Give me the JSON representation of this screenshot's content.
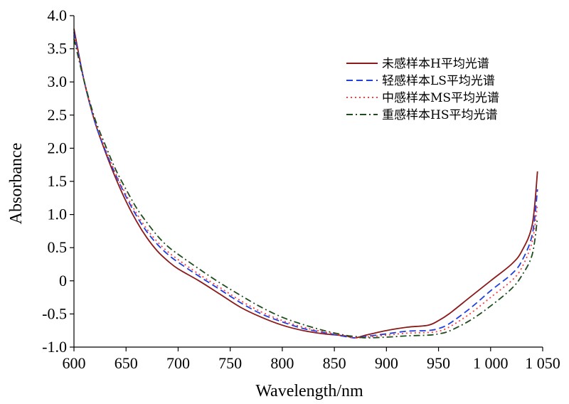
{
  "chart_data": {
    "type": "line",
    "title": "",
    "xlabel": "Wavelength/nm",
    "ylabel": "Absorbance",
    "xlim": [
      600,
      1050
    ],
    "ylim": [
      -1.0,
      4.0
    ],
    "x_ticks": [
      600,
      650,
      700,
      750,
      800,
      850,
      900,
      950,
      1000,
      1050
    ],
    "x_tick_labels": [
      "600",
      "650",
      "700",
      "750",
      "800",
      "850",
      "900",
      "950",
      "1 000",
      "1 050"
    ],
    "y_ticks": [
      -1.0,
      -0.5,
      0,
      0.5,
      1.0,
      1.5,
      2.0,
      2.5,
      3.0,
      3.5,
      4.0
    ],
    "y_tick_labels": [
      "-1.0",
      "-0.5",
      "0",
      "0.5",
      "1.0",
      "1.5",
      "2.0",
      "2.5",
      "3.0",
      "3.5",
      "4.0"
    ],
    "grid": false,
    "legend_position": "top-right",
    "series": [
      {
        "name": "未感样本H平均光谱",
        "color": "#8b1a1a",
        "dash": "solid",
        "x": [
          600,
          610,
          620,
          630,
          640,
          650,
          660,
          670,
          680,
          690,
          700,
          720,
          740,
          760,
          780,
          800,
          820,
          840,
          860,
          870,
          880,
          900,
          920,
          940,
          950,
          960,
          980,
          1000,
          1020,
          1030,
          1040,
          1045
        ],
        "y": [
          3.8,
          3.0,
          2.4,
          1.95,
          1.55,
          1.2,
          0.9,
          0.65,
          0.45,
          0.3,
          0.18,
          0.0,
          -0.2,
          -0.4,
          -0.55,
          -0.67,
          -0.75,
          -0.8,
          -0.83,
          -0.86,
          -0.82,
          -0.75,
          -0.7,
          -0.67,
          -0.6,
          -0.5,
          -0.25,
          0.0,
          0.25,
          0.45,
          0.85,
          1.65
        ]
      },
      {
        "name": "轻感样本LS平均光谱",
        "color": "#1f3fe0",
        "dash": "dashed",
        "x": [
          600,
          610,
          620,
          630,
          640,
          650,
          660,
          670,
          680,
          690,
          700,
          720,
          740,
          760,
          780,
          800,
          820,
          840,
          860,
          870,
          880,
          900,
          920,
          940,
          950,
          960,
          980,
          1000,
          1020,
          1030,
          1040,
          1045
        ],
        "y": [
          3.75,
          3.0,
          2.4,
          1.97,
          1.6,
          1.27,
          0.98,
          0.74,
          0.55,
          0.4,
          0.28,
          0.07,
          -0.13,
          -0.33,
          -0.5,
          -0.62,
          -0.72,
          -0.78,
          -0.84,
          -0.86,
          -0.84,
          -0.8,
          -0.76,
          -0.75,
          -0.72,
          -0.65,
          -0.42,
          -0.15,
          0.1,
          0.3,
          0.7,
          1.38
        ]
      },
      {
        "name": "中感样本MS平均光谱",
        "color": "#ff3b3b",
        "dash": "dotted",
        "x": [
          600,
          610,
          620,
          630,
          640,
          650,
          660,
          670,
          680,
          690,
          700,
          720,
          740,
          760,
          780,
          800,
          820,
          840,
          860,
          870,
          880,
          900,
          920,
          940,
          950,
          960,
          980,
          1000,
          1020,
          1030,
          1040,
          1045
        ],
        "y": [
          3.7,
          3.0,
          2.42,
          2.0,
          1.62,
          1.3,
          1.02,
          0.78,
          0.59,
          0.44,
          0.32,
          0.1,
          -0.1,
          -0.3,
          -0.47,
          -0.6,
          -0.7,
          -0.77,
          -0.83,
          -0.86,
          -0.85,
          -0.82,
          -0.79,
          -0.78,
          -0.76,
          -0.7,
          -0.5,
          -0.25,
          0.0,
          0.2,
          0.6,
          1.15
        ]
      },
      {
        "name": "重感样本HS平均光谱",
        "color": "#1e4d1e",
        "dash": "dashdot",
        "x": [
          600,
          610,
          620,
          630,
          640,
          650,
          660,
          670,
          680,
          690,
          700,
          720,
          740,
          760,
          780,
          800,
          820,
          840,
          860,
          870,
          880,
          900,
          920,
          940,
          950,
          960,
          980,
          1000,
          1020,
          1030,
          1040,
          1045
        ],
        "y": [
          3.65,
          3.0,
          2.45,
          2.05,
          1.68,
          1.38,
          1.1,
          0.88,
          0.68,
          0.52,
          0.4,
          0.18,
          -0.03,
          -0.22,
          -0.4,
          -0.55,
          -0.66,
          -0.75,
          -0.82,
          -0.84,
          -0.86,
          -0.85,
          -0.83,
          -0.82,
          -0.8,
          -0.76,
          -0.6,
          -0.38,
          -0.12,
          0.08,
          0.4,
          0.95
        ]
      }
    ]
  }
}
